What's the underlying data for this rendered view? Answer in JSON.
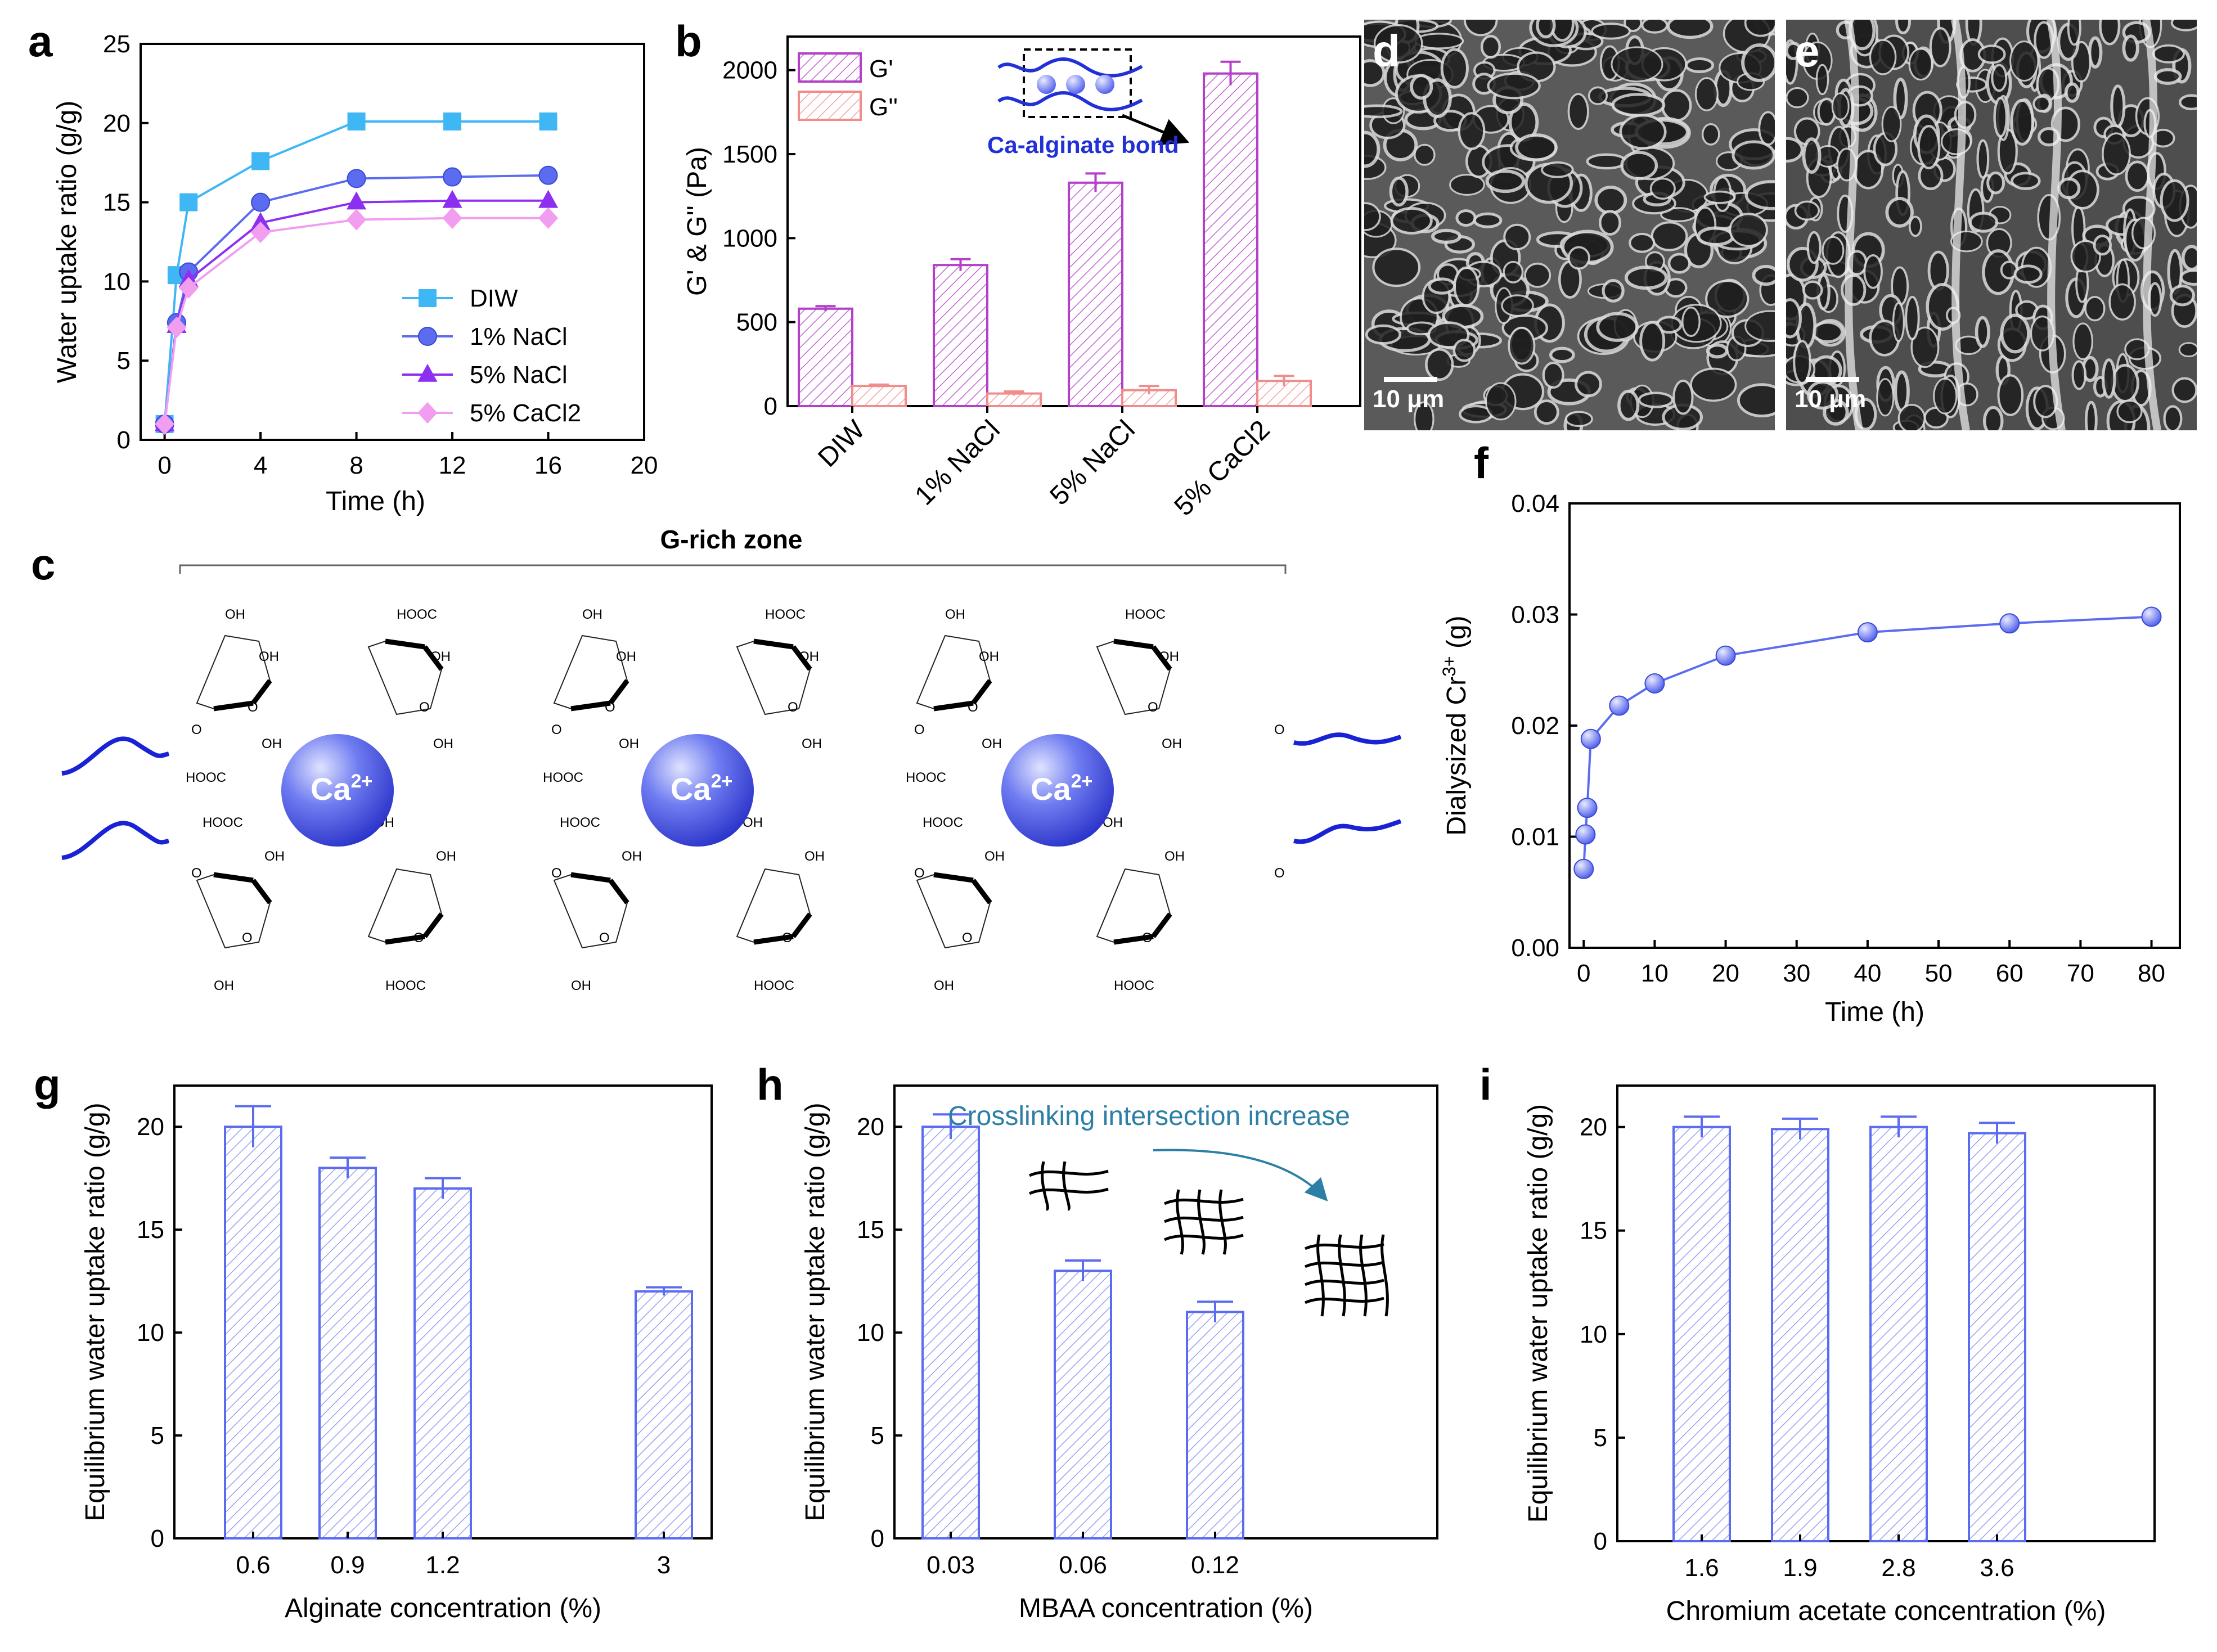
{
  "panels": {
    "a": "a",
    "b": "b",
    "c": "c",
    "d": "d",
    "e": "e",
    "f": "f",
    "g": "g",
    "h": "h",
    "i": "i"
  },
  "colors": {
    "cyan": "#3fb7f5",
    "blue": "#5b6cf0",
    "purple": "#8d2ff0",
    "pink": "#f29ef0",
    "magenta": "#b43fc9",
    "salmon": "#f28c8c",
    "barblue": "#5b6cf0",
    "teal": "#2d7fa6"
  },
  "chart_data": [
    {
      "id": "a",
      "type": "line",
      "title": "",
      "xlabel": "Time (h)",
      "ylabel": "Water uptake ratio (g/g)",
      "xlim": [
        -1,
        20
      ],
      "ylim": [
        0,
        25
      ],
      "xticks": [
        "0",
        "4",
        "8",
        "12",
        "16",
        "20"
      ],
      "yticks": [
        "0",
        "5",
        "10",
        "15",
        "20",
        "25"
      ],
      "x": [
        0,
        0.5,
        1,
        4,
        8,
        12,
        16
      ],
      "series": [
        {
          "name": "DIW",
          "values": [
            1,
            10.4,
            15,
            17.6,
            20.1,
            20.1,
            20.1
          ],
          "marker": "square",
          "color": "#3fb7f5"
        },
        {
          "name": "1% NaCl",
          "values": [
            1,
            7.4,
            10.6,
            15,
            16.5,
            16.6,
            16.7
          ],
          "marker": "circle",
          "color": "#5b6cf0"
        },
        {
          "name": "5% NaCl",
          "values": [
            1,
            7.2,
            10.1,
            13.7,
            15,
            15.1,
            15.1
          ],
          "marker": "triangle",
          "color": "#8d2ff0"
        },
        {
          "name": "5% CaCl2",
          "values": [
            1,
            7.1,
            9.6,
            13.1,
            13.9,
            14,
            14
          ],
          "marker": "diamond",
          "color": "#f29ef0"
        }
      ]
    },
    {
      "id": "b",
      "type": "bar",
      "categories": [
        "DIW",
        "1% NaCl",
        "5% NaCl",
        "5% CaCl2"
      ],
      "ylabel": "G' & G'' (Pa)",
      "ylim": [
        0,
        2200
      ],
      "yticks": [
        "0",
        "500",
        "1000",
        "1500",
        "2000"
      ],
      "series": [
        {
          "name": "G'",
          "values": [
            580,
            840,
            1330,
            1980
          ],
          "errors": [
            15,
            35,
            55,
            70
          ],
          "color": "#b43fc9"
        },
        {
          "name": "G''",
          "values": [
            120,
            75,
            95,
            150
          ],
          "errors": [
            8,
            12,
            25,
            30
          ],
          "color": "#f28c8c"
        }
      ],
      "annotation": "Ca-alginate bond"
    },
    {
      "id": "f",
      "type": "scatter",
      "xlabel": "Time (h)",
      "ylabel_prefix": "Dialysized Cr",
      "ylabel_sup": "3+",
      "ylabel_suffix": " (g)",
      "xlim": [
        -2,
        84
      ],
      "ylim": [
        0,
        0.04
      ],
      "xticks": [
        "0",
        "10",
        "20",
        "30",
        "40",
        "50",
        "60",
        "70",
        "80"
      ],
      "yticks": [
        "0.00",
        "0.01",
        "0.02",
        "0.03",
        "0.04"
      ],
      "x": [
        0,
        0.25,
        0.5,
        1,
        5,
        10,
        20,
        40,
        60,
        80
      ],
      "values": [
        0.0071,
        0.0102,
        0.0126,
        0.0188,
        0.0218,
        0.0238,
        0.0263,
        0.0284,
        0.0292,
        0.0298
      ]
    },
    {
      "id": "g",
      "type": "bar",
      "categories": [
        "0.6",
        "0.9",
        "1.2",
        "3"
      ],
      "values": [
        20,
        18,
        17,
        12
      ],
      "errors": [
        1,
        0.5,
        0.5,
        0.2
      ],
      "xlabel": "Alginate concentration (%)",
      "ylabel": "Equilibrium water uptake ratio (g/g)",
      "ylim": [
        0,
        22
      ],
      "yticks": [
        "0",
        "5",
        "10",
        "15",
        "20"
      ]
    },
    {
      "id": "h",
      "type": "bar",
      "categories": [
        "0.03",
        "0.06",
        "0.12"
      ],
      "values": [
        20,
        13,
        11
      ],
      "errors": [
        0.6,
        0.5,
        0.5
      ],
      "xlabel": "MBAA concentration (%)",
      "ylabel": "Equilibrium water uptake ratio (g/g)",
      "ylim": [
        0,
        22
      ],
      "yticks": [
        "0",
        "5",
        "10",
        "15",
        "20"
      ],
      "annotation": "Crosslinking intersection increase"
    },
    {
      "id": "i",
      "type": "bar",
      "categories": [
        "1.6",
        "1.9",
        "2.8",
        "3.6"
      ],
      "values": [
        20,
        19.9,
        20,
        19.7
      ],
      "errors": [
        0.5,
        0.5,
        0.5,
        0.5
      ],
      "xlabel": "Chromium acetate concentration (%)",
      "ylabel": "Equilibrium water uptake ratio (g/g)",
      "ylim": [
        0,
        22
      ],
      "yticks": [
        "0",
        "5",
        "10",
        "15",
        "20"
      ]
    }
  ],
  "structure": {
    "zone_label": "G-rich zone",
    "ion": "Ca",
    "ion_charge": "2+",
    "oh": "OH",
    "hooc": "HOOC",
    "o": "O"
  },
  "sem": {
    "scale_d": "10 μm",
    "scale_e": "10 μm"
  }
}
